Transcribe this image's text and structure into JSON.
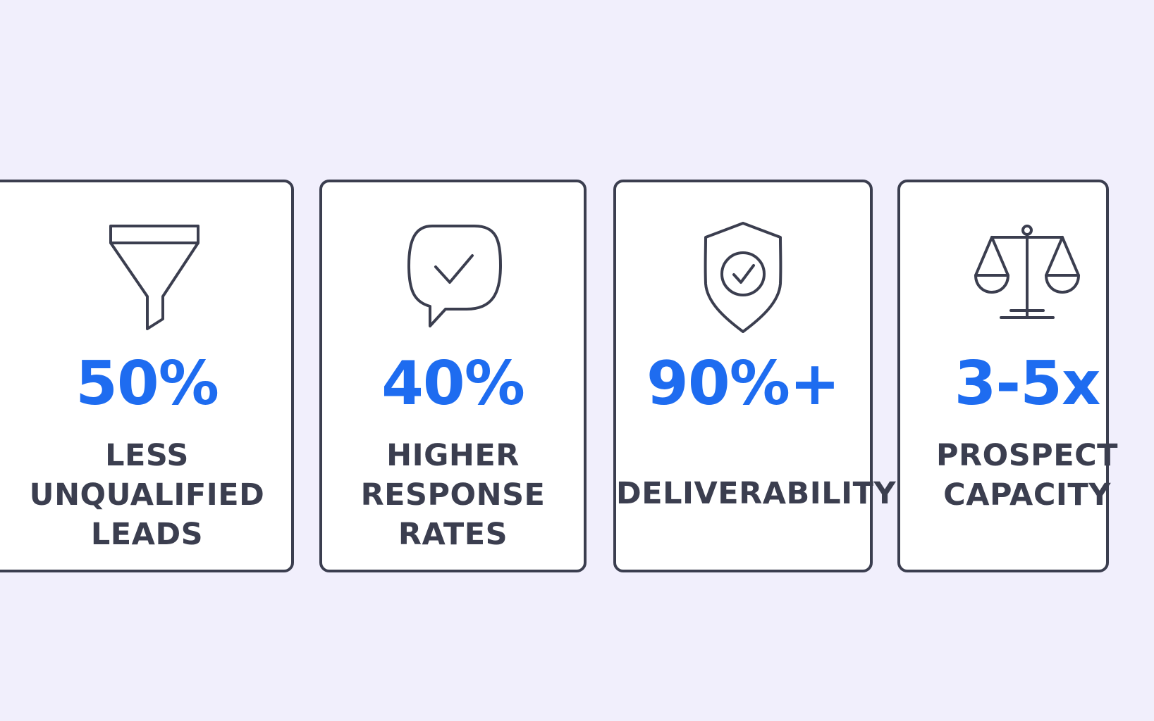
{
  "colors": {
    "background": "#f1effc",
    "card_background": "#ffffff",
    "border": "#3b3e4f",
    "metric": "#1e6cf0",
    "caption": "#3b3e4f"
  },
  "cards": [
    {
      "icon": "funnel-icon",
      "metric": "50%",
      "caption": "LESS\nUNQUALIFIED\nLEADS"
    },
    {
      "icon": "chat-check-icon",
      "metric": "40%",
      "caption": "HIGHER\nRESPONSE\nRATES"
    },
    {
      "icon": "shield-check-icon",
      "metric": "90%+",
      "caption": "DELIVERABILITY"
    },
    {
      "icon": "scales-icon",
      "metric": "3-5x",
      "caption": "PROSPECT\nCAPACITY"
    }
  ]
}
